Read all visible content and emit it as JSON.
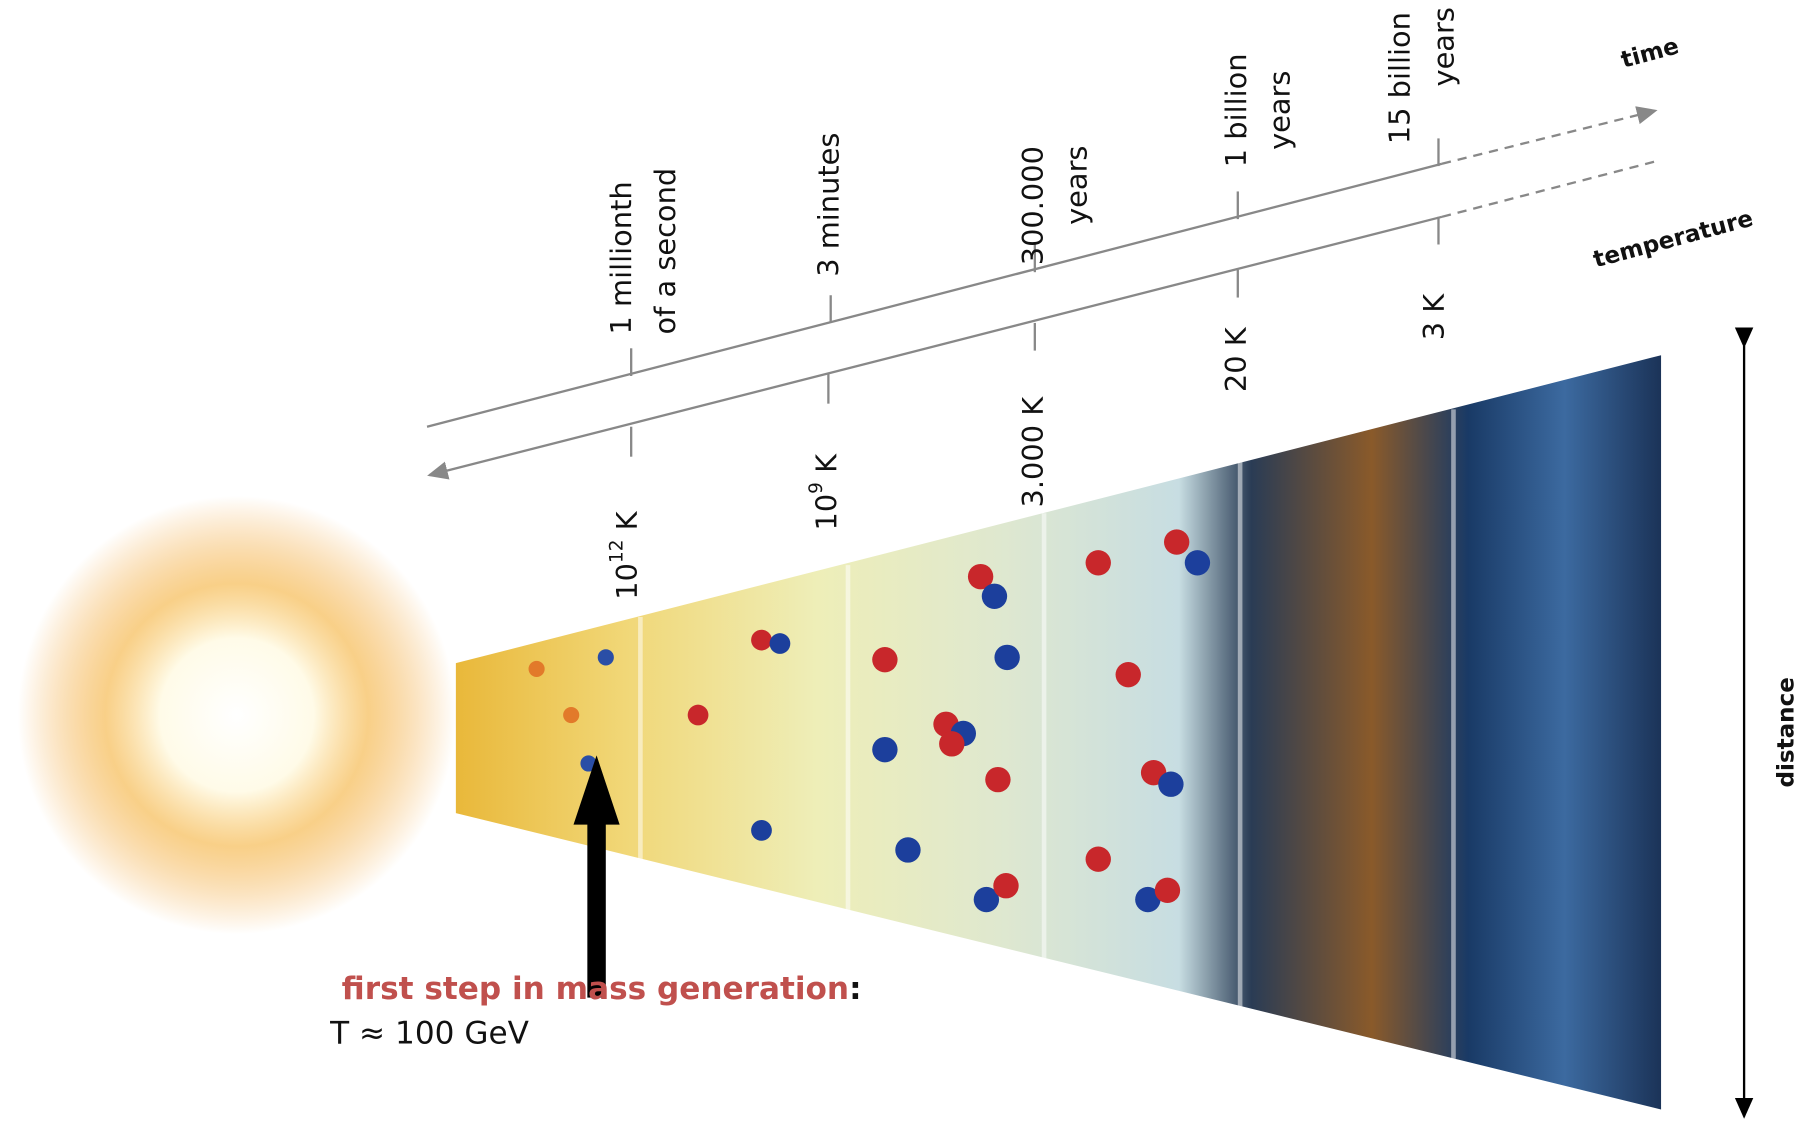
{
  "time_axis": {
    "label": "time",
    "ticks": [
      [
        "1 millionth",
        "of a second"
      ],
      [
        "3 minutes"
      ],
      [
        "300.000",
        "years"
      ],
      [
        "1 billion",
        "years"
      ],
      [
        "15 billion",
        "years"
      ]
    ]
  },
  "temperature_axis": {
    "label": "temperature",
    "ticks": [
      {
        "base": "10",
        "exp": "12",
        "unit": " K"
      },
      {
        "base": "10",
        "exp": "9",
        "unit": " K"
      },
      {
        "base": "3.000 K"
      },
      {
        "base": "20 K"
      },
      {
        "base": "3 K"
      }
    ]
  },
  "distance_axis": {
    "label": "distance"
  },
  "annotation": {
    "title": "first step in mass generation",
    "colon": ":",
    "detail": "T ≈ 100 GeV"
  }
}
